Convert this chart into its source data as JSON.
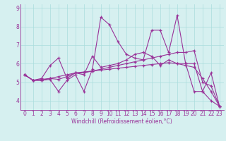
{
  "xlabel": "Windchill (Refroidissement éolien,°C)",
  "background_color": "#d6f0f0",
  "grid_color": "#aadddd",
  "line_color": "#993399",
  "xlim": [
    -0.5,
    23.5
  ],
  "ylim": [
    3.5,
    9.2
  ],
  "yticks": [
    4,
    5,
    6,
    7,
    8,
    9
  ],
  "xticks": [
    0,
    1,
    2,
    3,
    4,
    5,
    6,
    7,
    8,
    9,
    10,
    11,
    12,
    13,
    14,
    15,
    16,
    17,
    18,
    19,
    20,
    21,
    22,
    23
  ],
  "series": [
    [
      5.4,
      5.1,
      5.1,
      5.15,
      4.5,
      5.1,
      5.4,
      4.5,
      5.7,
      8.5,
      8.1,
      7.2,
      6.5,
      6.3,
      6.2,
      7.8,
      7.8,
      6.6,
      8.6,
      6.0,
      4.5,
      4.5,
      5.5,
      3.7
    ],
    [
      5.4,
      5.1,
      5.2,
      5.9,
      6.3,
      5.2,
      5.5,
      5.4,
      6.4,
      5.8,
      5.9,
      6.0,
      6.2,
      6.5,
      6.6,
      6.4,
      5.9,
      6.2,
      6.0,
      6.0,
      6.0,
      4.5,
      4.0,
      3.7
    ],
    [
      5.4,
      5.1,
      5.1,
      5.2,
      5.15,
      5.3,
      5.5,
      5.5,
      5.6,
      5.7,
      5.8,
      5.9,
      6.0,
      6.1,
      6.2,
      6.3,
      6.4,
      6.5,
      6.6,
      6.6,
      6.7,
      5.0,
      4.8,
      3.7
    ],
    [
      5.4,
      5.1,
      5.15,
      5.2,
      5.3,
      5.4,
      5.5,
      5.55,
      5.6,
      5.65,
      5.7,
      5.75,
      5.8,
      5.85,
      5.9,
      5.95,
      6.0,
      6.05,
      6.0,
      5.9,
      5.8,
      5.2,
      4.5,
      3.7
    ]
  ],
  "xlabel_fontsize": 5.5,
  "tick_fontsize": 5.5,
  "linewidth": 0.8,
  "markersize": 3.5
}
